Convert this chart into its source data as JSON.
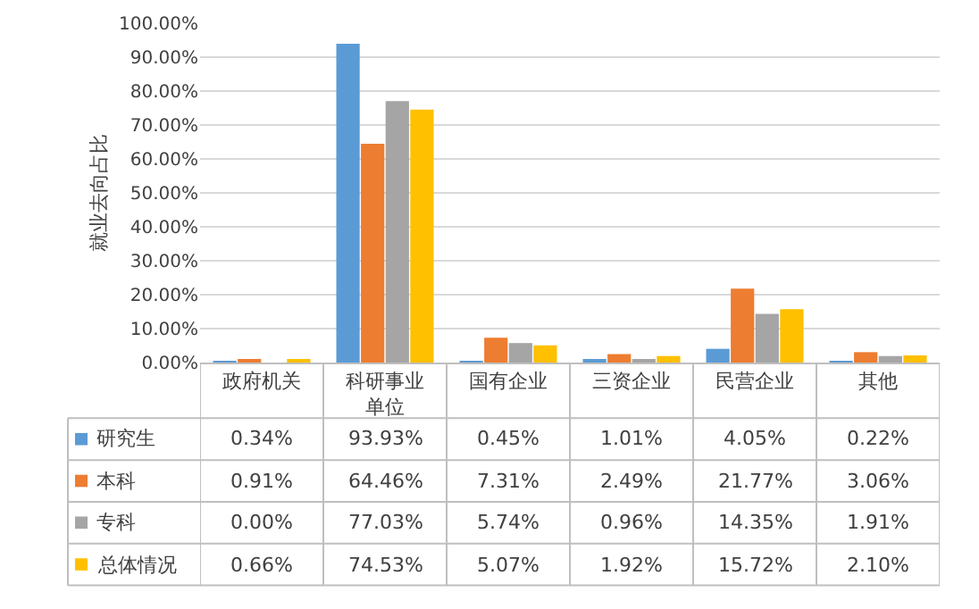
{
  "chart_data": {
    "type": "bar",
    "ylabel": "就业去向占比",
    "categories": [
      "政府机关",
      "科研事业单位",
      "国有企业",
      "三资企业",
      "民营企业",
      "其他"
    ],
    "series": [
      {
        "name": "研究生",
        "color": "#5b9bd5",
        "values": [
          0.34,
          93.93,
          0.45,
          1.01,
          4.05,
          0.22
        ],
        "value_labels": [
          "0.34%",
          "93.93%",
          "0.45%",
          "1.01%",
          "4.05%",
          "0.22%"
        ]
      },
      {
        "name": "本科",
        "color": "#ed7d31",
        "values": [
          0.91,
          64.46,
          7.31,
          2.49,
          21.77,
          3.06
        ],
        "value_labels": [
          "0.91%",
          "64.46%",
          "7.31%",
          "2.49%",
          "21.77%",
          "3.06%"
        ]
      },
      {
        "name": "专科",
        "color": "#a5a5a5",
        "values": [
          0.0,
          77.03,
          5.74,
          0.96,
          14.35,
          1.91
        ],
        "value_labels": [
          "0.00%",
          "77.03%",
          "5.74%",
          "0.96%",
          "14.35%",
          "1.91%"
        ]
      },
      {
        "name": "总体情况",
        "color": "#ffc000",
        "values": [
          0.66,
          74.53,
          5.07,
          1.92,
          15.72,
          2.1
        ],
        "value_labels": [
          "0.66%",
          "74.53%",
          "5.07%",
          "1.92%",
          "15.72%",
          "2.10%"
        ]
      }
    ],
    "ylim": [
      0,
      100
    ],
    "yticks": [
      {
        "value": 0,
        "label": "0.00%"
      },
      {
        "value": 10,
        "label": "10.00%"
      },
      {
        "value": 20,
        "label": "20.00%"
      },
      {
        "value": 30,
        "label": "30.00%"
      },
      {
        "value": 40,
        "label": "40.00%"
      },
      {
        "value": 50,
        "label": "50.00%"
      },
      {
        "value": 60,
        "label": "60.00%"
      },
      {
        "value": 70,
        "label": "70.00%"
      },
      {
        "value": 80,
        "label": "80.00%"
      },
      {
        "value": 90,
        "label": "90.00%"
      },
      {
        "value": 100,
        "label": "100.00%"
      }
    ],
    "grid": "y",
    "legend": "bottom"
  }
}
